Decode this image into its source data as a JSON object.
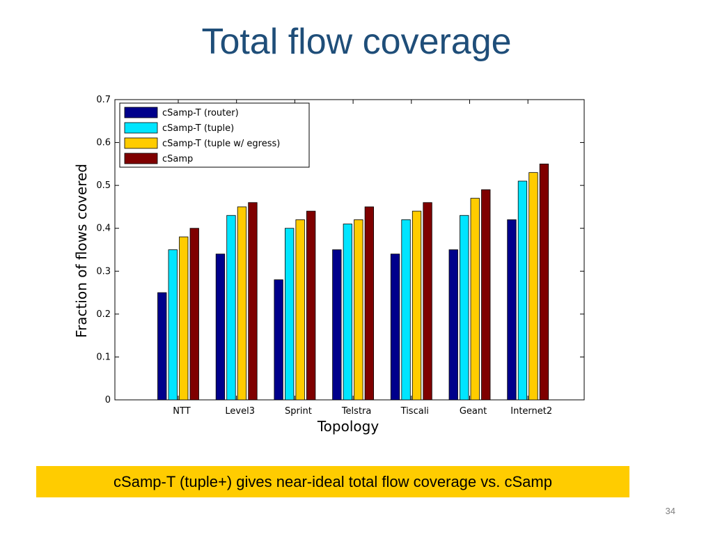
{
  "slide": {
    "title": "Total flow coverage",
    "callout": "cSamp-T (tuple+) gives near-ideal total flow coverage vs. cSamp",
    "page_number": "34"
  },
  "chart_data": {
    "type": "bar",
    "title": "",
    "xlabel": "Topology",
    "ylabel": "Fraction of flows covered",
    "ylim": [
      0,
      0.7
    ],
    "yticks": [
      "0",
      "0.1",
      "0.2",
      "0.3",
      "0.4",
      "0.5",
      "0.6",
      "0.7"
    ],
    "categories": [
      "NTT",
      "Level3",
      "Sprint",
      "Telstra",
      "Tiscali",
      "Geant",
      "Internet2"
    ],
    "legend_position": "top-left",
    "grid": false,
    "series": [
      {
        "name": "cSamp-T (router)",
        "color": "#00008b",
        "values": [
          0.25,
          0.34,
          0.28,
          0.35,
          0.34,
          0.35,
          0.42
        ]
      },
      {
        "name": "cSamp-T (tuple)",
        "color": "#00e5ff",
        "values": [
          0.35,
          0.43,
          0.4,
          0.41,
          0.42,
          0.43,
          0.51
        ]
      },
      {
        "name": "cSamp-T (tuple w/ egress)",
        "color": "#ffcc00",
        "values": [
          0.38,
          0.45,
          0.42,
          0.42,
          0.44,
          0.47,
          0.53
        ]
      },
      {
        "name": "cSamp",
        "color": "#7f0000",
        "values": [
          0.4,
          0.46,
          0.44,
          0.45,
          0.46,
          0.49,
          0.55
        ]
      }
    ]
  }
}
